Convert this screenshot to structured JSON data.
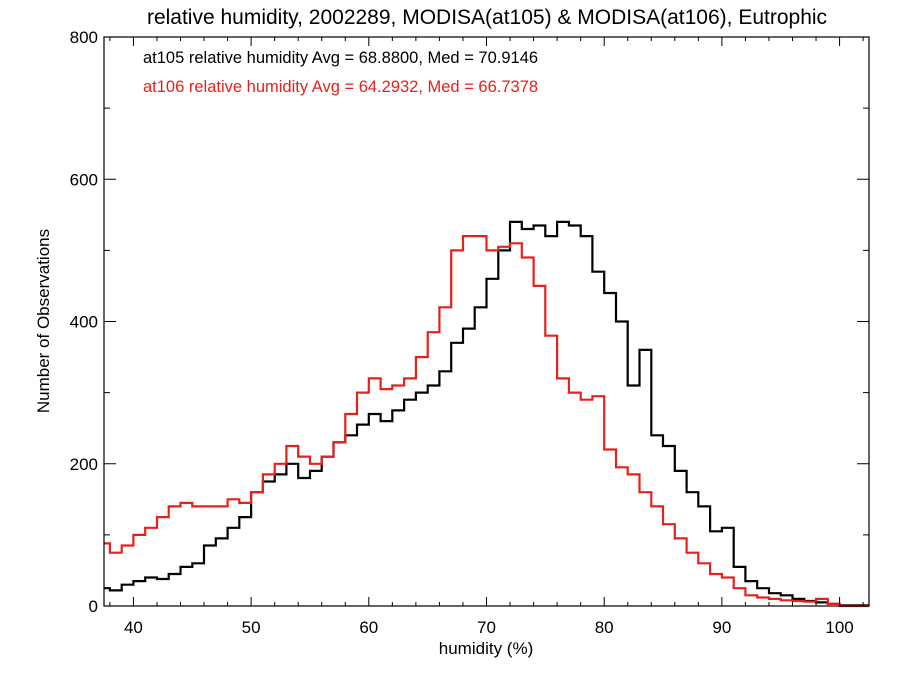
{
  "chart_data": {
    "type": "line",
    "title": "relative humidity, 2002289, MODISA(at105) & MODISA(at106), Eutrophic",
    "xlabel": "humidity (%)",
    "ylabel": "Number of Observations",
    "xlim": [
      37.5,
      102.5
    ],
    "ylim": [
      0,
      800
    ],
    "x_ticks": [
      40,
      50,
      60,
      70,
      80,
      90,
      100
    ],
    "y_ticks": [
      0,
      200,
      400,
      600,
      800
    ],
    "grid": false,
    "legend_position": "top-left",
    "annotations": [
      {
        "text": "at105 relative humidity Avg = 68.8800, Med = 70.9146",
        "color": "#000000"
      },
      {
        "text": "at106 relative humidity Avg = 64.2932, Med = 66.7378",
        "color": "#e8201c"
      }
    ],
    "series": [
      {
        "color": "#000000",
        "points": [
          [
            37.5,
            25
          ],
          [
            38,
            22
          ],
          [
            39,
            30
          ],
          [
            40,
            35
          ],
          [
            41,
            40
          ],
          [
            42,
            38
          ],
          [
            43,
            45
          ],
          [
            44,
            55
          ],
          [
            45,
            60
          ],
          [
            46,
            85
          ],
          [
            47,
            95
          ],
          [
            48,
            110
          ],
          [
            49,
            125
          ],
          [
            50,
            160
          ],
          [
            51,
            175
          ],
          [
            52,
            185
          ],
          [
            53,
            200
          ],
          [
            54,
            180
          ],
          [
            55,
            190
          ],
          [
            56,
            210
          ],
          [
            57,
            230
          ],
          [
            58,
            240
          ],
          [
            59,
            255
          ],
          [
            60,
            270
          ],
          [
            61,
            260
          ],
          [
            62,
            275
          ],
          [
            63,
            290
          ],
          [
            64,
            300
          ],
          [
            65,
            310
          ],
          [
            66,
            330
          ],
          [
            67,
            370
          ],
          [
            68,
            390
          ],
          [
            69,
            420
          ],
          [
            70,
            460
          ],
          [
            71,
            500
          ],
          [
            72,
            540
          ],
          [
            73,
            530
          ],
          [
            74,
            535
          ],
          [
            75,
            520
          ],
          [
            76,
            540
          ],
          [
            77,
            535
          ],
          [
            78,
            520
          ],
          [
            79,
            470
          ],
          [
            80,
            440
          ],
          [
            81,
            400
          ],
          [
            82,
            310
          ],
          [
            83,
            360
          ],
          [
            84,
            240
          ],
          [
            85,
            225
          ],
          [
            86,
            190
          ],
          [
            87,
            160
          ],
          [
            88,
            140
          ],
          [
            89,
            105
          ],
          [
            90,
            110
          ],
          [
            91,
            55
          ],
          [
            92,
            35
          ],
          [
            93,
            25
          ],
          [
            94,
            18
          ],
          [
            95,
            15
          ],
          [
            96,
            10
          ],
          [
            97,
            7
          ],
          [
            98,
            5
          ],
          [
            99,
            3
          ],
          [
            100,
            1
          ],
          [
            102.5,
            1
          ]
        ]
      },
      {
        "color": "#e8201c",
        "points": [
          [
            37.5,
            88
          ],
          [
            38,
            75
          ],
          [
            39,
            85
          ],
          [
            40,
            100
          ],
          [
            41,
            110
          ],
          [
            42,
            125
          ],
          [
            43,
            140
          ],
          [
            44,
            145
          ],
          [
            45,
            140
          ],
          [
            46,
            140
          ],
          [
            47,
            140
          ],
          [
            48,
            150
          ],
          [
            49,
            145
          ],
          [
            50,
            160
          ],
          [
            51,
            185
          ],
          [
            52,
            200
          ],
          [
            53,
            225
          ],
          [
            54,
            210
          ],
          [
            55,
            200
          ],
          [
            56,
            210
          ],
          [
            57,
            230
          ],
          [
            58,
            270
          ],
          [
            59,
            300
          ],
          [
            60,
            320
          ],
          [
            61,
            305
          ],
          [
            62,
            310
          ],
          [
            63,
            320
          ],
          [
            64,
            350
          ],
          [
            65,
            385
          ],
          [
            66,
            420
          ],
          [
            67,
            500
          ],
          [
            68,
            520
          ],
          [
            69,
            520
          ],
          [
            70,
            500
          ],
          [
            71,
            505
          ],
          [
            72,
            510
          ],
          [
            73,
            490
          ],
          [
            74,
            450
          ],
          [
            75,
            380
          ],
          [
            76,
            320
          ],
          [
            77,
            300
          ],
          [
            78,
            290
          ],
          [
            79,
            295
          ],
          [
            80,
            220
          ],
          [
            81,
            195
          ],
          [
            82,
            185
          ],
          [
            83,
            160
          ],
          [
            84,
            140
          ],
          [
            85,
            115
          ],
          [
            86,
            95
          ],
          [
            87,
            75
          ],
          [
            88,
            60
          ],
          [
            89,
            45
          ],
          [
            90,
            40
          ],
          [
            91,
            25
          ],
          [
            92,
            15
          ],
          [
            93,
            12
          ],
          [
            94,
            10
          ],
          [
            95,
            8
          ],
          [
            96,
            7
          ],
          [
            97,
            6
          ],
          [
            98,
            10
          ],
          [
            99,
            3
          ],
          [
            100,
            0
          ],
          [
            102.5,
            0
          ]
        ]
      }
    ]
  }
}
